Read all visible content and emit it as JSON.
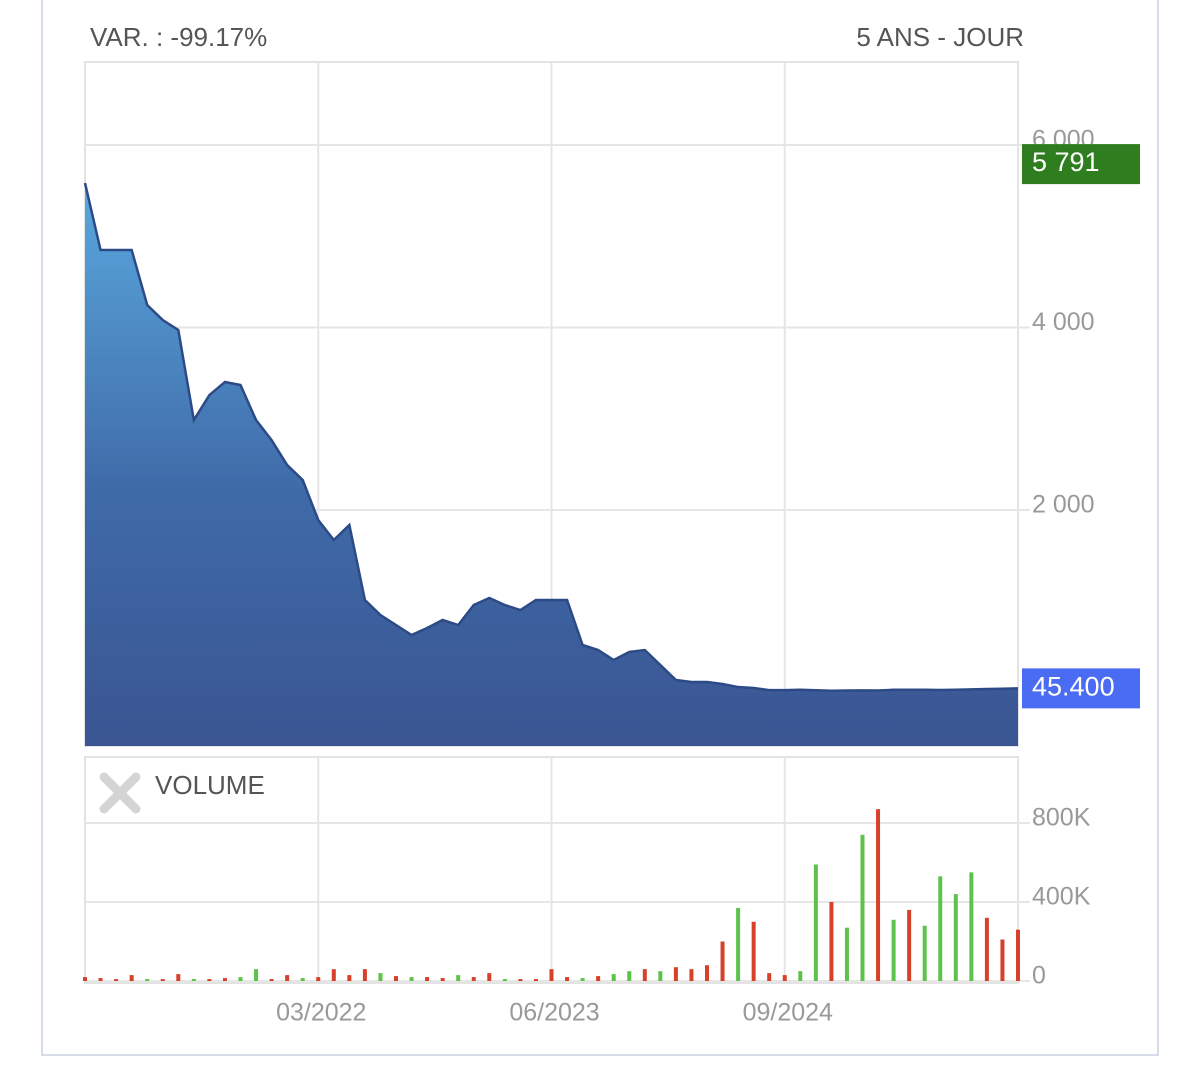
{
  "header": {
    "variation": "VAR. : -99.17%",
    "period": "5 ANS - JOUR"
  },
  "chart_data": [
    {
      "type": "area",
      "x": [
        "12/2020",
        "01/2021",
        "02/2021",
        "03/2021",
        "04/2021",
        "05/2021",
        "06/2021",
        "07/2021",
        "08/2021",
        "09/2021",
        "10/2021",
        "11/2021",
        "12/2021",
        "01/2022",
        "02/2022",
        "03/2022",
        "04/2022",
        "05/2022",
        "06/2022",
        "07/2022",
        "08/2022",
        "09/2022",
        "10/2022",
        "11/2022",
        "12/2022",
        "01/2023",
        "02/2023",
        "03/2023",
        "04/2023",
        "05/2023",
        "06/2023",
        "07/2023",
        "08/2023",
        "09/2023",
        "10/2023",
        "11/2023",
        "12/2023",
        "01/2024",
        "02/2024",
        "03/2024",
        "04/2024",
        "05/2024",
        "06/2024",
        "07/2024",
        "08/2024",
        "09/2024",
        "10/2024",
        "11/2024",
        "12/2024",
        "01/2025",
        "02/2025",
        "03/2025",
        "04/2025",
        "05/2025",
        "06/2025",
        "07/2025",
        "08/2025",
        "09/2025",
        "10/2025",
        "11/2025",
        "12/2025"
      ],
      "values": [
        5584,
        4850,
        4850,
        4850,
        4247,
        4082,
        3973,
        2986,
        3260,
        3403,
        3370,
        2986,
        2767,
        2493,
        2329,
        1890,
        1671,
        1836,
        1014,
        849,
        740,
        630,
        707,
        795,
        740,
        959,
        1036,
        959,
        904,
        1014,
        1014,
        1014,
        521,
        466,
        356,
        444,
        466,
        301,
        137,
        115,
        115,
        93,
        60,
        49,
        27,
        27,
        30,
        25,
        20,
        22,
        24,
        22,
        30,
        30,
        30,
        28,
        30,
        35,
        38,
        42,
        45.4
      ],
      "ylim": [
        -586,
        6910
      ],
      "yticks": [
        {
          "value": 2000,
          "label": "2 000"
        },
        {
          "value": 4000,
          "label": "4 000"
        },
        {
          "value": 6000,
          "label": "6 000"
        }
      ],
      "xticks": [
        "03/2022",
        "06/2023",
        "09/2024"
      ],
      "price_labels": [
        {
          "value": 5791,
          "label": "5 791",
          "color": "#2e7d1e"
        },
        {
          "value": 45.4,
          "label": "45.400",
          "color": "#4a6cf2"
        }
      ],
      "color": "#2c4b86",
      "grid": true
    },
    {
      "type": "bar",
      "title": "VOLUME",
      "values": [
        20000,
        15000,
        10000,
        30000,
        10000,
        10000,
        35000,
        10000,
        10000,
        15000,
        20000,
        60000,
        10000,
        30000,
        15000,
        20000,
        60000,
        30000,
        60000,
        40000,
        25000,
        20000,
        20000,
        15000,
        30000,
        20000,
        40000,
        10000,
        10000,
        10000,
        60000,
        20000,
        15000,
        25000,
        35000,
        50000,
        60000,
        50000,
        70000,
        60000,
        80000,
        200000,
        370000,
        300000,
        40000,
        30000,
        50000,
        590000,
        400000,
        270000,
        740000,
        870000,
        310000,
        360000,
        280000,
        530000,
        440000,
        550000,
        320000,
        210000,
        260000
      ],
      "colors": [
        "#d8402a",
        "#d8402a",
        "#d8402a",
        "#d8402a",
        "#5cc24a",
        "#d8402a",
        "#d8402a",
        "#5cc24a",
        "#d8402a",
        "#d8402a",
        "#5cc24a",
        "#5cc24a",
        "#d8402a",
        "#d8402a",
        "#5cc24a",
        "#d8402a",
        "#d8402a",
        "#d8402a",
        "#d8402a",
        "#5cc24a",
        "#d8402a",
        "#5cc24a",
        "#d8402a",
        "#d8402a",
        "#5cc24a",
        "#d8402a",
        "#d8402a",
        "#5cc24a",
        "#d8402a",
        "#d8402a",
        "#d8402a",
        "#d8402a",
        "#5cc24a",
        "#d8402a",
        "#5cc24a",
        "#5cc24a",
        "#d8402a",
        "#5cc24a",
        "#d8402a",
        "#d8402a",
        "#d8402a",
        "#d8402a",
        "#5cc24a",
        "#d8402a",
        "#d8402a",
        "#d8402a",
        "#5cc24a",
        "#5cc24a",
        "#d8402a",
        "#5cc24a",
        "#5cc24a",
        "#d8402a",
        "#5cc24a",
        "#d8402a",
        "#5cc24a",
        "#5cc24a",
        "#5cc24a",
        "#5cc24a",
        "#d8402a",
        "#d8402a",
        "#d8402a"
      ],
      "ylim": [
        -10000,
        1134000
      ],
      "yticks": [
        0,
        {
          "value": 400000,
          "label": "400K"
        },
        {
          "value": 800000,
          "label": "800K"
        }
      ],
      "grid": true
    }
  ]
}
